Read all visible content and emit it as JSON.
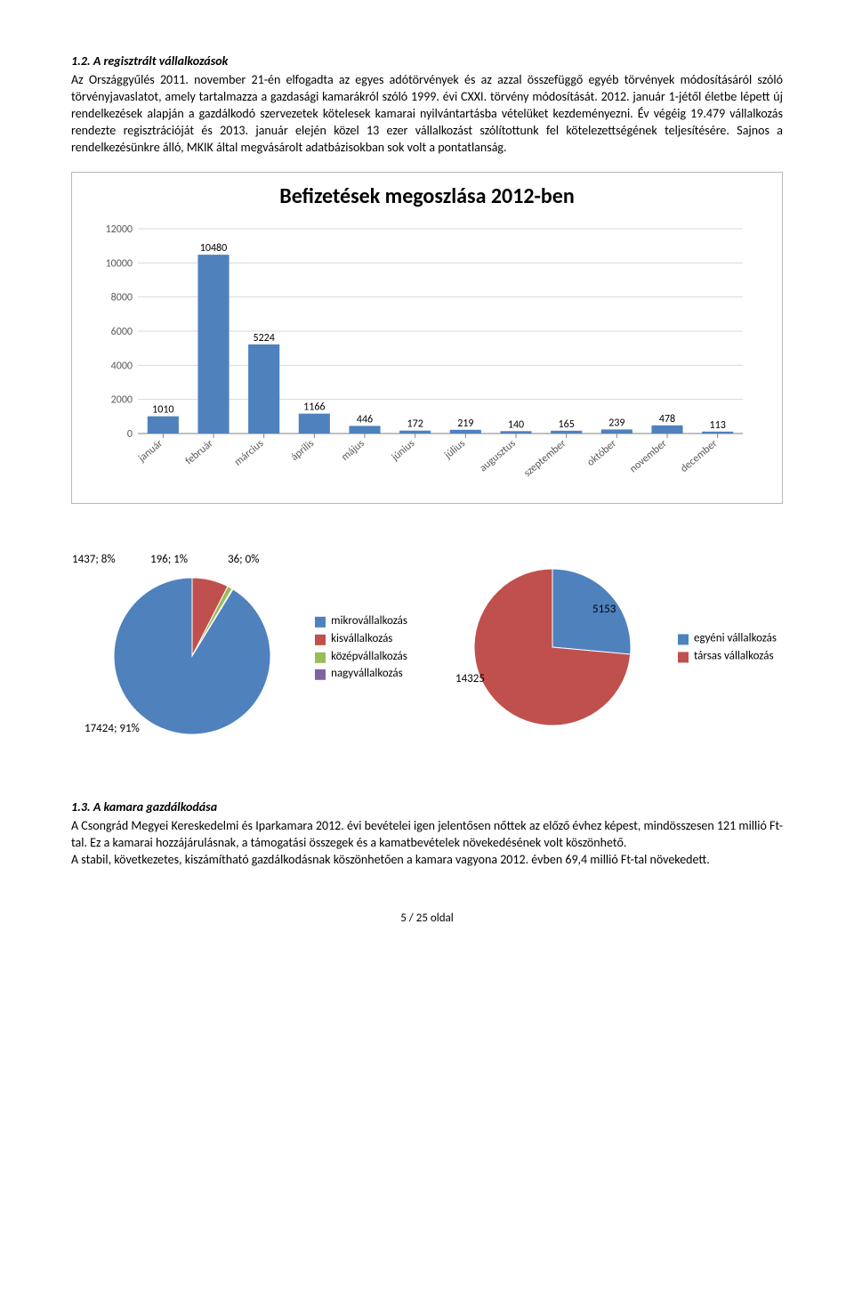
{
  "section1": {
    "heading": "1.2. A regisztrált vállalkozások",
    "paragraph": "Az Országgyűlés 2011. november 21-én elfogadta az egyes adótörvények és az azzal összefüggő egyéb törvények módosításáról szóló törvényjavaslatot, amely tartalmazza a gazdasági kamarákról szóló 1999. évi CXXI. törvény módosítását. 2012. január 1-jétől életbe lépett új rendelkezések alapján a gazdálkodó szervezetek kötelesek kamarai nyilvántartásba vételüket kezdeményezni. Év végéig 19.479 vállalkozás rendezte regisztrációját és 2013. január elején közel 13 ezer vállalkozást szólítottunk fel kötelezettségének teljesítésére. Sajnos a rendelkezésünkre álló, MKIK által megvásárolt adatbázisokban sok volt a pontatlanság."
  },
  "bar_chart": {
    "title": "Befizetések megoszlása 2012-ben",
    "type": "bar",
    "categories": [
      "január",
      "február",
      "március",
      "április",
      "május",
      "június",
      "július",
      "augusztus",
      "szeptember",
      "október",
      "november",
      "december"
    ],
    "values": [
      1010,
      10480,
      5224,
      1166,
      446,
      172,
      219,
      140,
      165,
      239,
      478,
      113
    ],
    "bar_color": "#4f81bd",
    "ylim": [
      0,
      12000
    ],
    "ytick_step": 2000,
    "grid_color": "#d9d9d9",
    "axis_color": "#808080",
    "background": "#ffffff",
    "label_fontsize": 12
  },
  "pie1": {
    "type": "pie",
    "slices": [
      {
        "label": "17424; 91%",
        "value": 17424,
        "pct": 91,
        "color": "#4f81bd"
      },
      {
        "label": "1437; 8%",
        "value": 1437,
        "pct": 8,
        "color": "#c0504d"
      },
      {
        "label": "196; 1%",
        "value": 196,
        "pct": 1,
        "color": "#9bbb59"
      },
      {
        "label": "36; 0%",
        "value": 36,
        "pct": 0,
        "color": "#8064a2"
      }
    ],
    "legend": [
      "mikrovállalkozás",
      "kisvállalkozás",
      "középvállalkozás",
      "nagyvállalkozás"
    ],
    "legend_colors": [
      "#4f81bd",
      "#c0504d",
      "#9bbb59",
      "#8064a2"
    ]
  },
  "pie2": {
    "type": "pie",
    "slices": [
      {
        "label": "5153",
        "value": 5153,
        "color": "#4f81bd"
      },
      {
        "label": "14325",
        "value": 14325,
        "color": "#c0504d"
      }
    ],
    "legend": [
      "egyéni vállalkozás",
      "társas vállalkozás"
    ],
    "legend_colors": [
      "#4f81bd",
      "#c0504d"
    ]
  },
  "section2": {
    "heading": "1.3. A kamara gazdálkodása",
    "paragraph": "A Csongrád Megyei Kereskedelmi és Iparkamara 2012. évi bevételei igen jelentősen nőttek az előző évhez képest, mindösszesen 121 millió Ft-tal. Ez a kamarai hozzájárulásnak, a támogatási összegek és a kamatbevételek növekedésének volt köszönhető.\nA stabil, következetes, kiszámítható gazdálkodásnak köszönhetően a kamara vagyona 2012. évben 69,4 millió Ft-tal növekedett."
  },
  "page_number": "5 / 25 oldal"
}
